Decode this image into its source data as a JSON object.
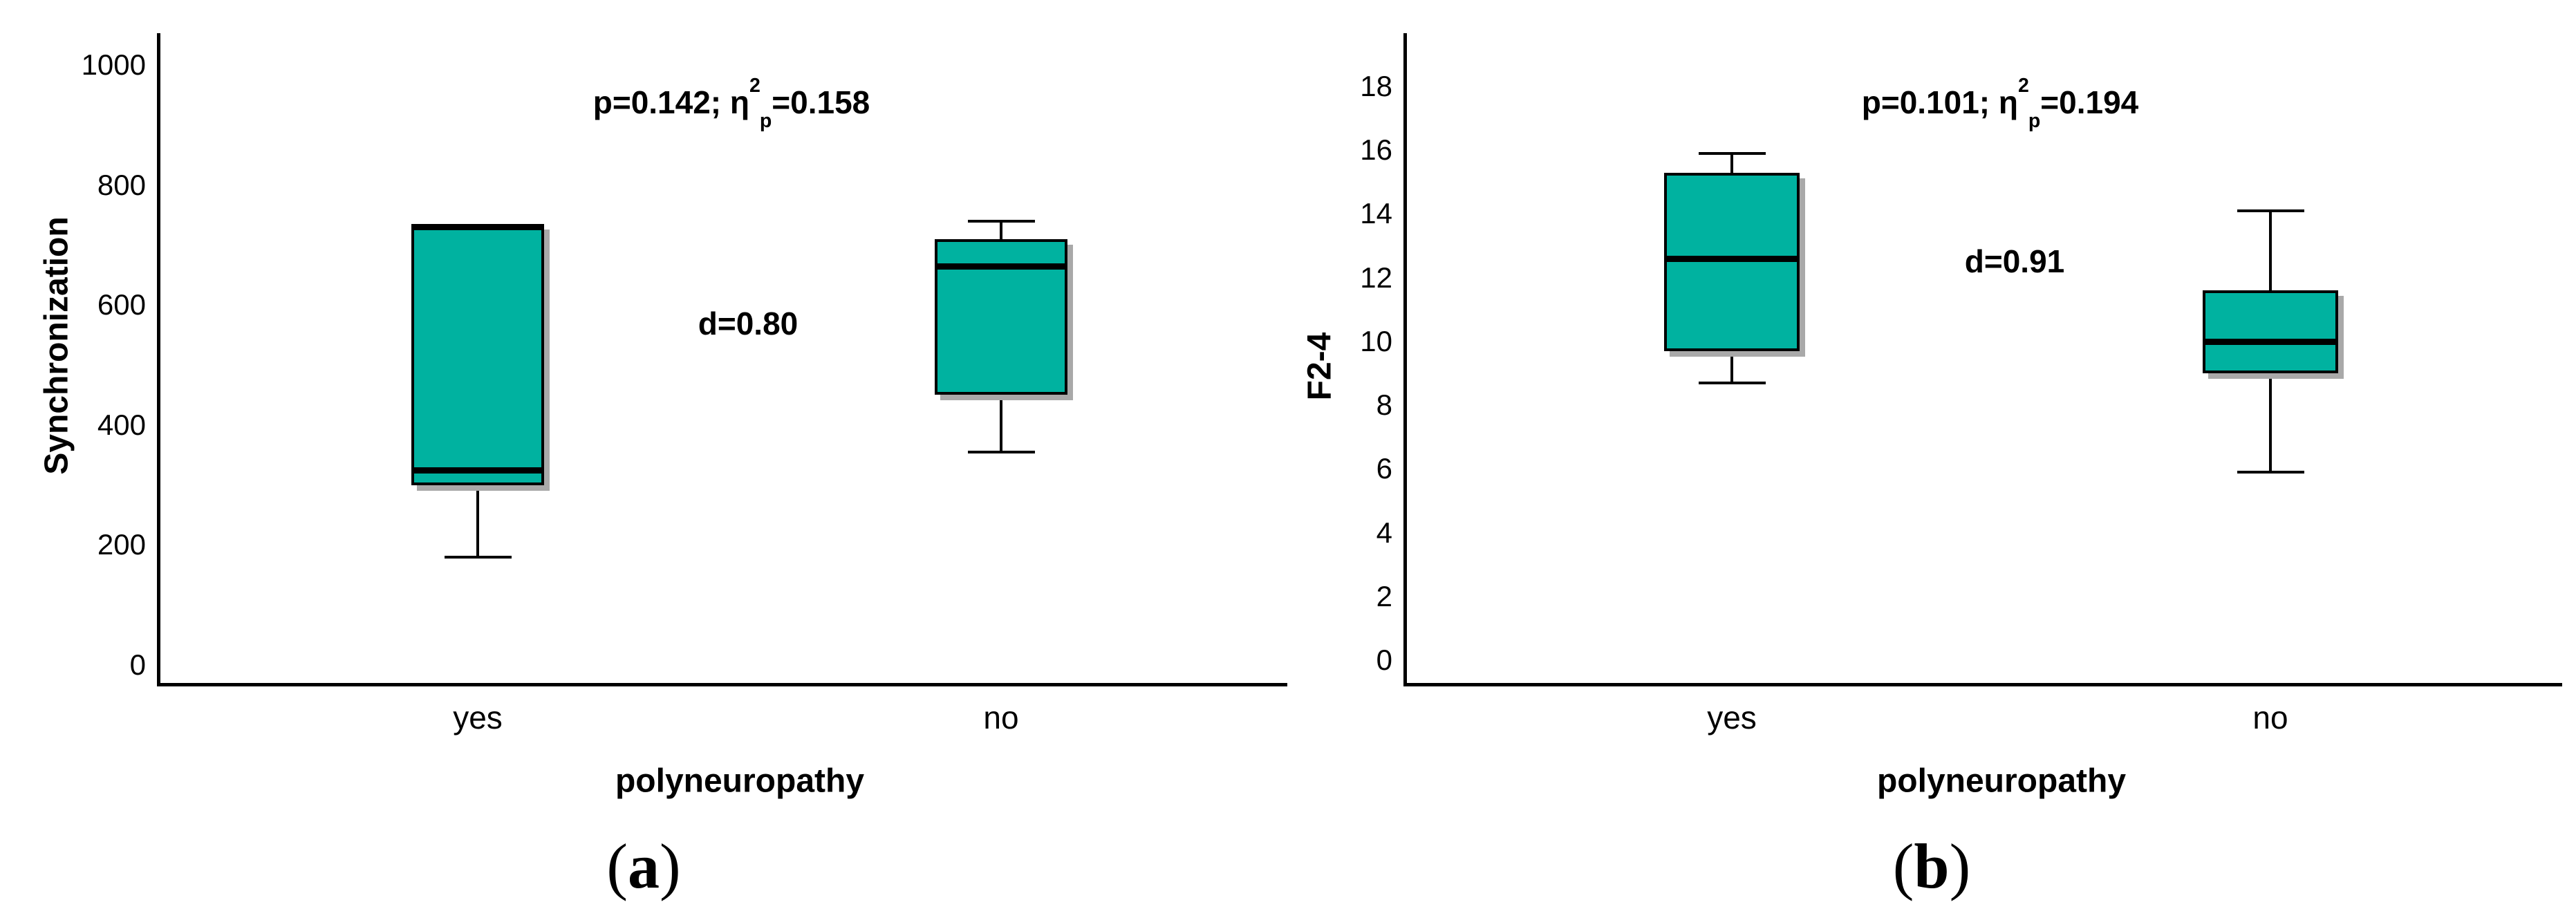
{
  "figure": {
    "background": "#FFFFFF",
    "panels": [
      {
        "caption_open": "(",
        "caption_letter": "a",
        "caption_close": ")",
        "y_axis_title": "Synchronization",
        "x_axis_title": "polyneuropathy",
        "p_annotation": {
          "pre": "p=0.142; η",
          "sup": "2",
          "sub": "p",
          "post": "=0.158"
        },
        "d_annotation": "d=0.80"
      },
      {
        "caption_open": "(",
        "caption_letter": "b",
        "caption_close": ")",
        "y_axis_title": "F2-4",
        "x_axis_title": "polyneuropathy",
        "p_annotation": {
          "pre": "p=0.101; η",
          "sup": "2",
          "sub": "p",
          "post": "=0.194"
        },
        "d_annotation": "d=0.91"
      }
    ]
  },
  "chart_data": [
    {
      "type": "boxplot",
      "panel": "a",
      "title": "",
      "ylabel": "Synchronization",
      "xlabel": "polyneuropathy",
      "categories": [
        "yes",
        "no"
      ],
      "y_ticks": [
        0,
        200,
        400,
        600,
        800,
        1000
      ],
      "ylim": [
        0,
        1050
      ],
      "grid": false,
      "legend": false,
      "annotations": [
        "p=0.142; η²p=0.158",
        "d=0.80"
      ],
      "series": [
        {
          "category": "yes",
          "whisker_low": 180,
          "q1": 300,
          "median": 325,
          "q3": 735,
          "whisker_high": 735
        },
        {
          "category": "no",
          "whisker_low": 355,
          "q1": 450,
          "median": 665,
          "q3": 710,
          "whisker_high": 740
        }
      ]
    },
    {
      "type": "boxplot",
      "panel": "b",
      "title": "",
      "ylabel": "F2-4",
      "xlabel": "polyneuropathy",
      "categories": [
        "yes",
        "no"
      ],
      "y_ticks": [
        0,
        2,
        4,
        6,
        8,
        10,
        12,
        14,
        16,
        18
      ],
      "ylim": [
        0,
        19.7
      ],
      "grid": false,
      "legend": false,
      "annotations": [
        "p=0.101; η²p=0.194",
        "d=0.91"
      ],
      "series": [
        {
          "category": "yes",
          "whisker_low": 8.7,
          "q1": 9.7,
          "median": 12.6,
          "q3": 15.3,
          "whisker_high": 15.9
        },
        {
          "category": "no",
          "whisker_low": 5.9,
          "q1": 9.0,
          "median": 10.0,
          "q3": 11.6,
          "whisker_high": 14.1
        }
      ]
    }
  ],
  "colors": {
    "box_fill": "#00B2A0",
    "box_border": "#000000",
    "median": "#000000",
    "whisker": "#000000",
    "shadow": "#A9A9A9",
    "text": "#000000",
    "background": "#FFFFFF"
  }
}
